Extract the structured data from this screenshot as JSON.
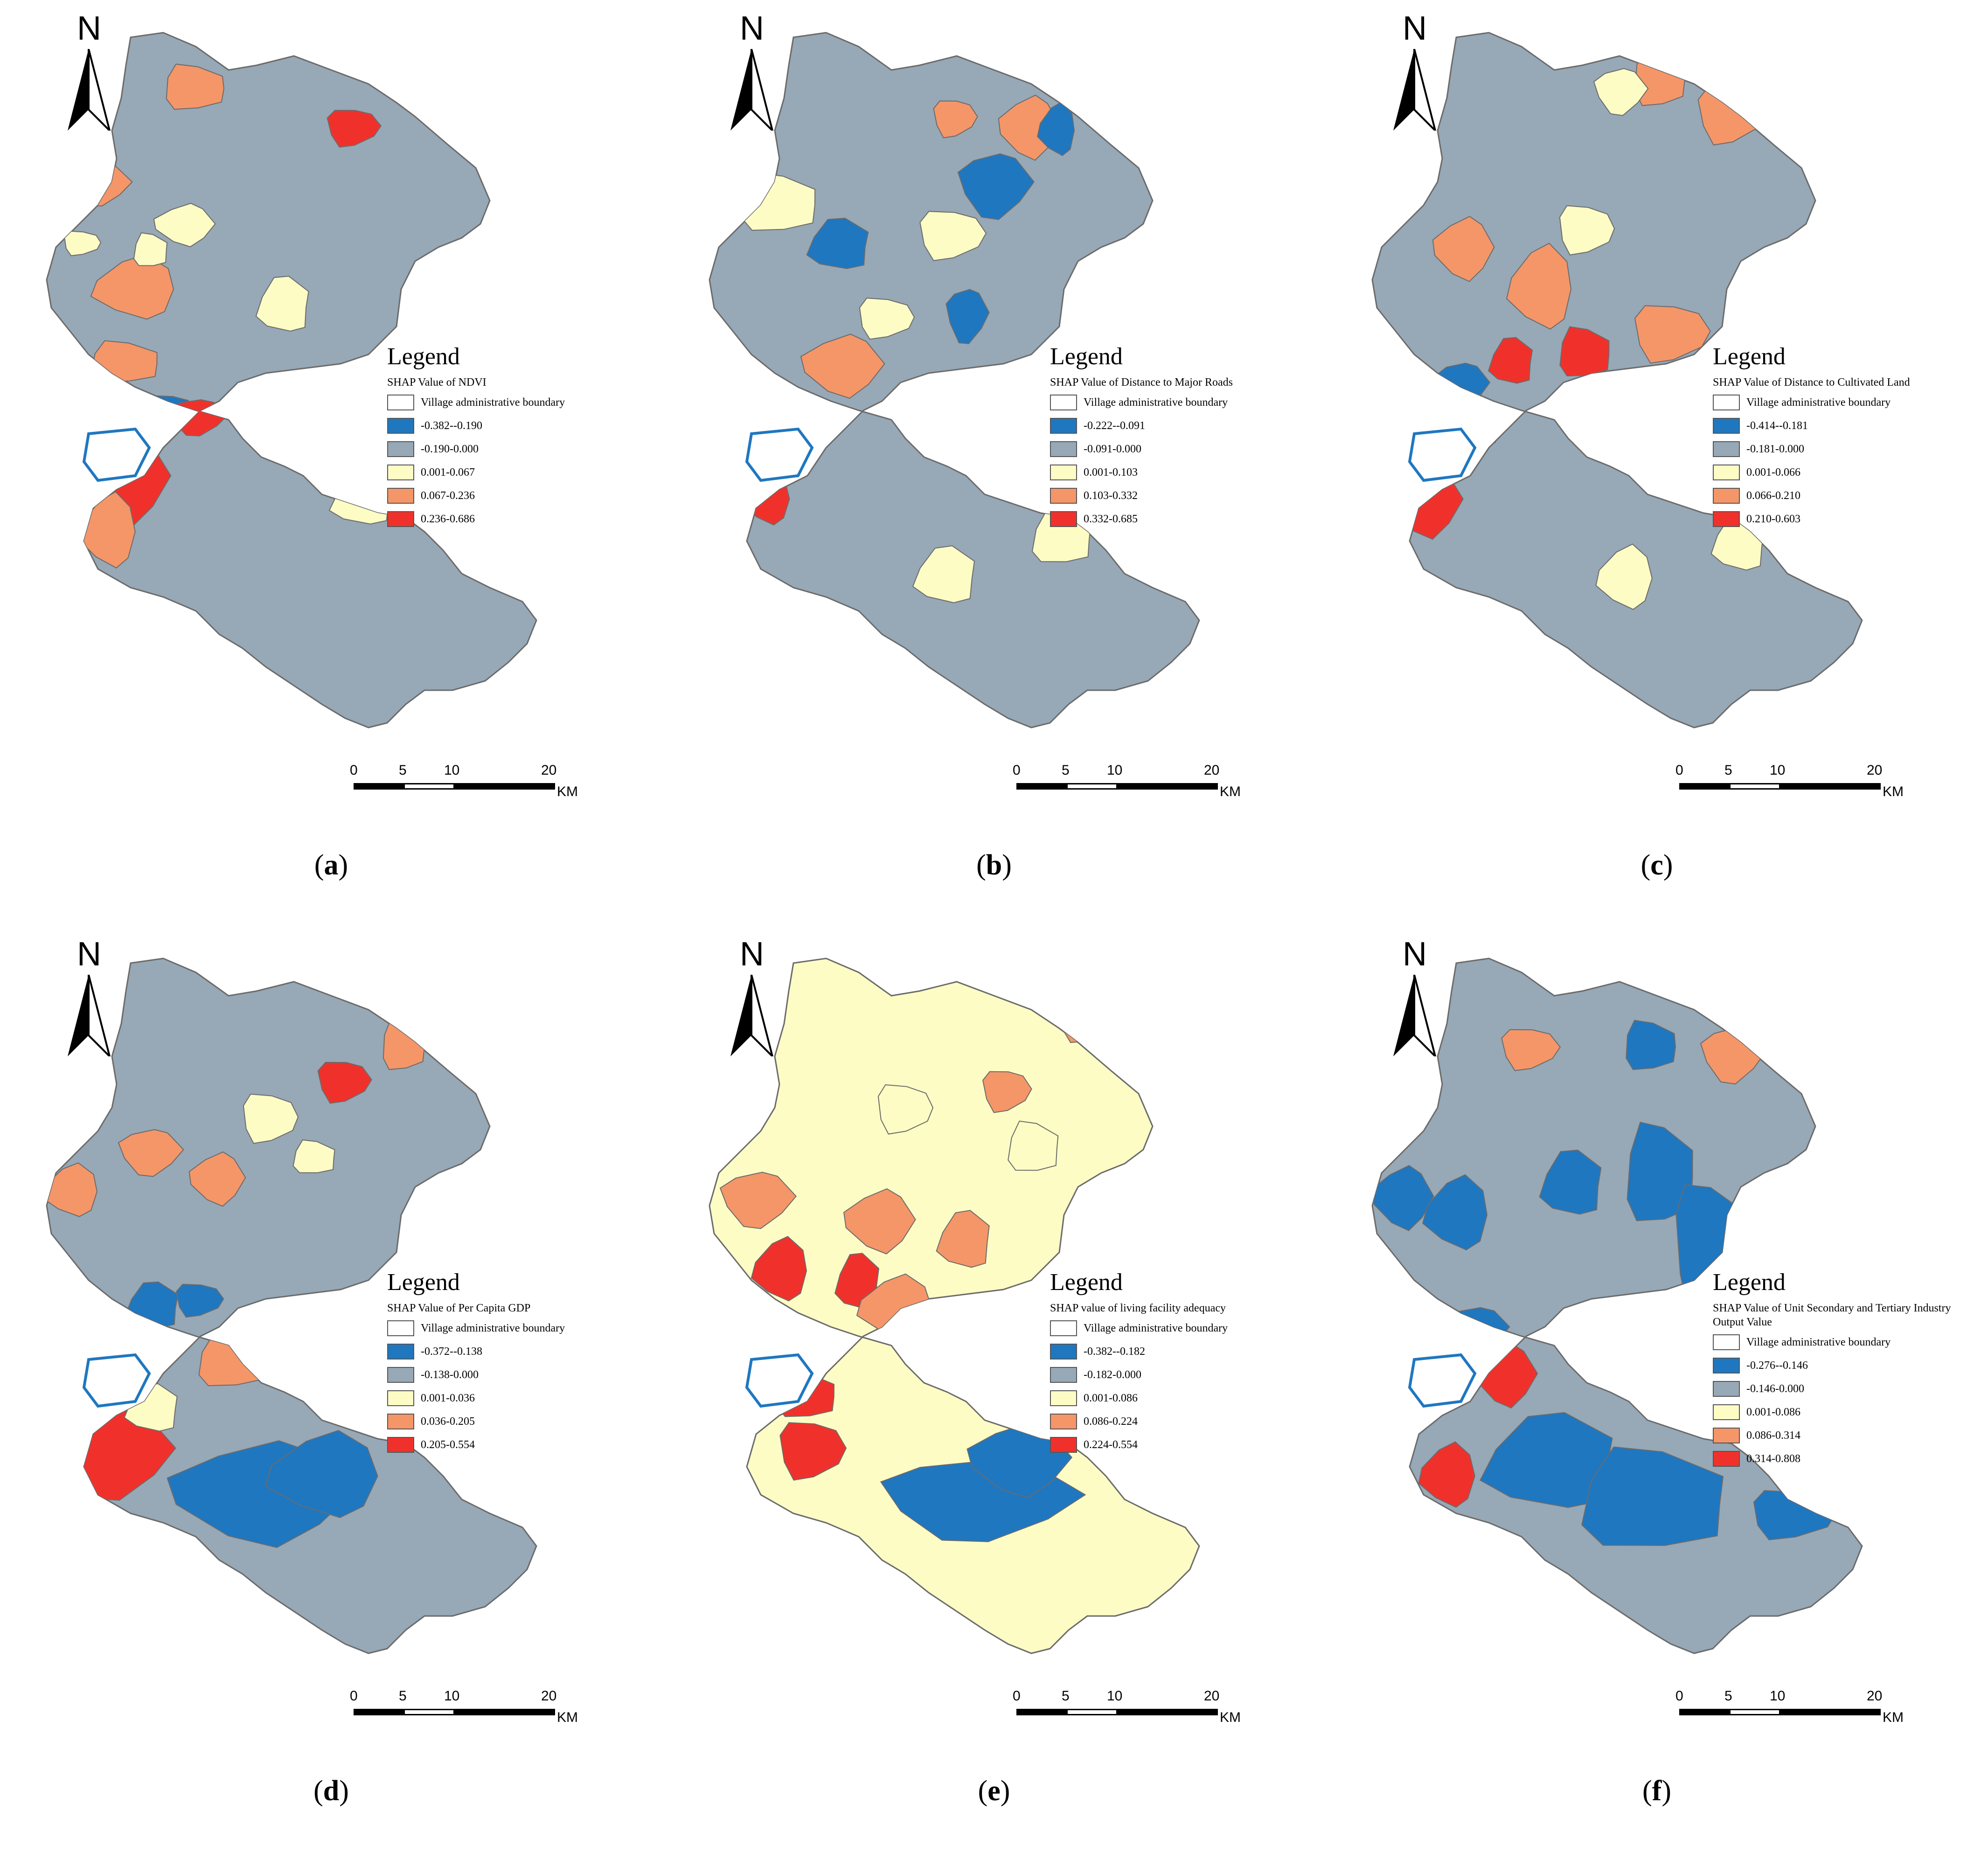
{
  "north_label": "N",
  "scale": {
    "ticks": [
      "0",
      "5",
      "10",
      "20"
    ],
    "unit": "KM"
  },
  "colors": {
    "class1": "#1f77c0",
    "class2": "#97a8b6",
    "class3": "#fdfcc5",
    "class4": "#f59668",
    "class5": "#f0312b",
    "boundary": "#ffffff"
  },
  "panels": [
    {
      "caption_letter": "a",
      "legend_title": "Legend",
      "legend_subtitle": "SHAP Value of NDVI",
      "legend_items": [
        "Village administrative boundary",
        "-0.382--0.190",
        "-0.190-0.000",
        "0.001-0.067",
        "0.067-0.236",
        "0.236-0.686"
      ]
    },
    {
      "caption_letter": "b",
      "legend_title": "Legend",
      "legend_subtitle": "SHAP Value of Distance to Major Roads",
      "legend_items": [
        "Village administrative boundary",
        "-0.222--0.091",
        "-0.091-0.000",
        "0.001-0.103",
        "0.103-0.332",
        "0.332-0.685"
      ]
    },
    {
      "caption_letter": "c",
      "legend_title": "Legend",
      "legend_subtitle": "SHAP Value of Distance to Cultivated Land",
      "legend_items": [
        "Village administrative boundary",
        "-0.414--0.181",
        "-0.181-0.000",
        "0.001-0.066",
        "0.066-0.210",
        "0.210-0.603"
      ]
    },
    {
      "caption_letter": "d",
      "legend_title": "Legend",
      "legend_subtitle": "SHAP Value of Per Capita GDP",
      "legend_items": [
        "Village administrative boundary",
        "-0.372--0.138",
        "-0.138-0.000",
        "0.001-0.036",
        "0.036-0.205",
        "0.205-0.554"
      ]
    },
    {
      "caption_letter": "e",
      "legend_title": "Legend",
      "legend_subtitle": "SHAP value of living facility adequacy",
      "legend_items": [
        "Village administrative boundary",
        "-0.382--0.182",
        "-0.182-0.000",
        "0.001-0.086",
        "0.086-0.224",
        "0.224-0.554"
      ]
    },
    {
      "caption_letter": "f",
      "legend_title": "Legend",
      "legend_subtitle": "SHAP Value of Unit Secondary and Tertiary Industry Output Value",
      "legend_items": [
        "Village administrative boundary",
        "-0.276--0.146",
        "-0.146-0.000",
        "0.001-0.086",
        "0.086-0.314",
        "0.314-0.808"
      ]
    }
  ]
}
